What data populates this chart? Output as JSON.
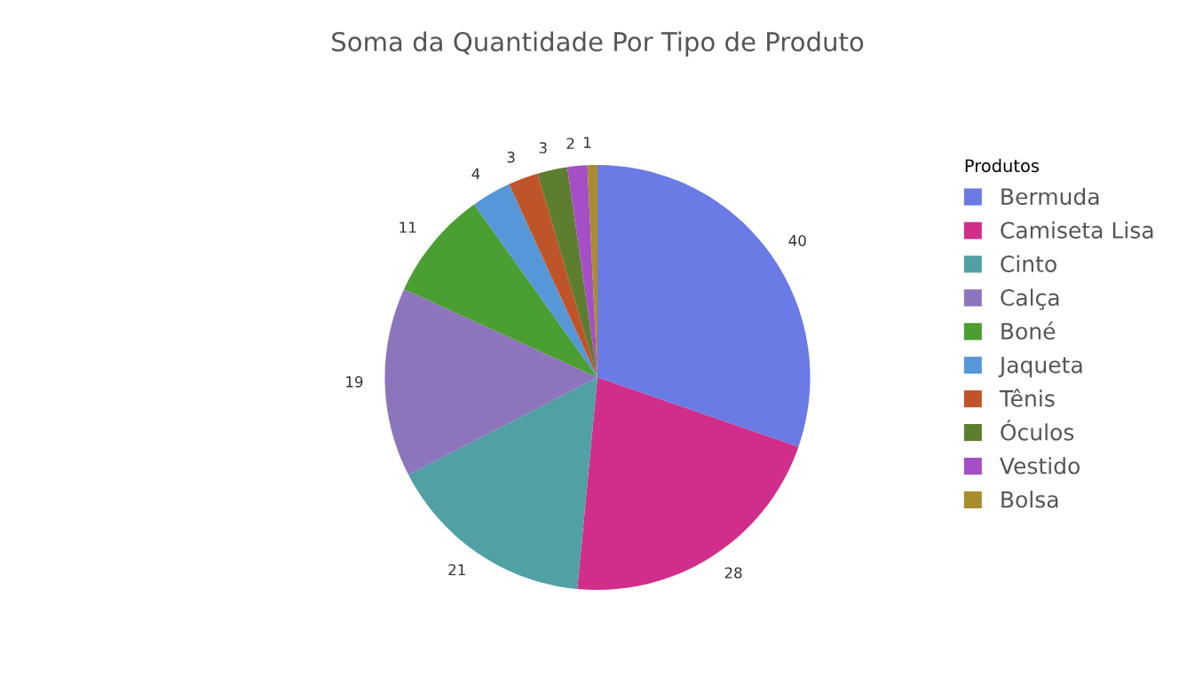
{
  "chart_data": {
    "type": "pie",
    "title": "Soma da Quantidade Por Tipo de Produto",
    "legend_title": "Produtos",
    "categories": [
      "Bermuda",
      "Camiseta Lisa",
      "Cinto",
      "Calça",
      "Boné",
      "Jaqueta",
      "Tênis",
      "Óculos",
      "Vestido",
      "Bolsa"
    ],
    "values": [
      40,
      28,
      21,
      19,
      11,
      4,
      3,
      3,
      2,
      1
    ],
    "colors": [
      "#6a7be6",
      "#d02e8a",
      "#50a0a4",
      "#8d75bd",
      "#4a9e32",
      "#5597d9",
      "#bf5428",
      "#5d7d2f",
      "#a44fc5",
      "#a98c2d"
    ],
    "data_labels": true,
    "legend": "right"
  }
}
